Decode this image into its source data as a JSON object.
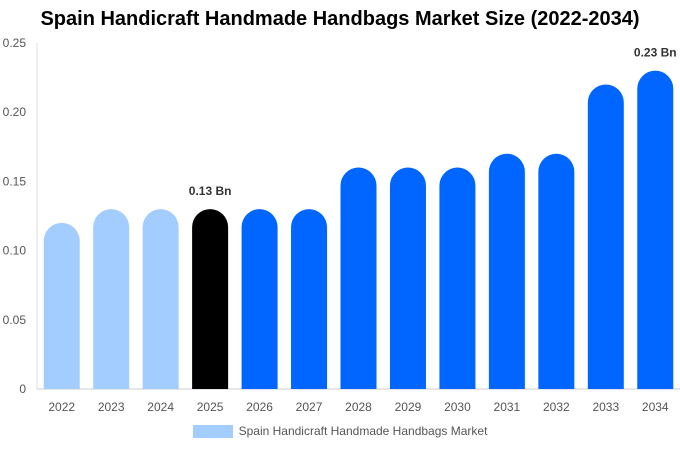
{
  "chart_data": {
    "type": "bar",
    "title": "Spain Handicraft Handmade Handbags Market Size (2022-2034)",
    "categories": [
      "2022",
      "2023",
      "2024",
      "2025",
      "2026",
      "2027",
      "2028",
      "2029",
      "2030",
      "2031",
      "2032",
      "2033",
      "2034"
    ],
    "series": [
      {
        "name": "Spain Handicraft Handmade Handbags Market",
        "values": [
          0.12,
          0.13,
          0.13,
          0.13,
          0.13,
          0.13,
          0.16,
          0.16,
          0.16,
          0.17,
          0.17,
          0.22,
          0.23
        ]
      }
    ],
    "bar_colors": [
      "#a3cdff",
      "#a3cdff",
      "#a3cdff",
      "#000000",
      "#0066ff",
      "#0066ff",
      "#0066ff",
      "#0066ff",
      "#0066ff",
      "#0066ff",
      "#0066ff",
      "#0066ff",
      "#0066ff"
    ],
    "data_labels": [
      {
        "category": "2025",
        "text": "0.13 Bn"
      },
      {
        "category": "2034",
        "text": "0.23 Bn"
      }
    ],
    "y_ticks": [
      "0",
      "0.05",
      "0.10",
      "0.15",
      "0.20",
      "0.25"
    ],
    "ylim": [
      0,
      0.25
    ],
    "grid": false,
    "legend_position": "bottom",
    "legend_color": "#a3cdff"
  }
}
